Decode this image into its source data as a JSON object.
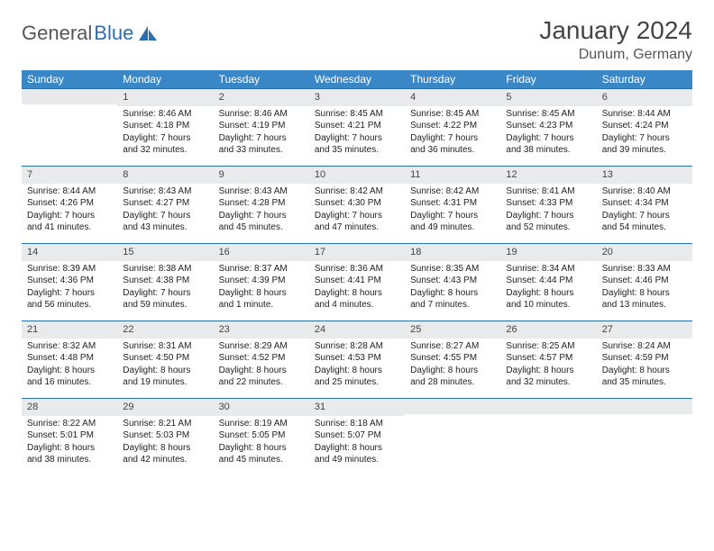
{
  "brand": {
    "part1": "General",
    "part2": "Blue"
  },
  "title": "January 2024",
  "location": "Dunum, Germany",
  "colors": {
    "header_bg": "#3a87c8",
    "header_text": "#ffffff",
    "daynum_bg": "#e9eaeb",
    "daynum_border": "#2b6fb0",
    "text": "#222222",
    "title_text": "#444444"
  },
  "weekdays": [
    "Sunday",
    "Monday",
    "Tuesday",
    "Wednesday",
    "Thursday",
    "Friday",
    "Saturday"
  ],
  "weeks": [
    [
      {
        "n": "",
        "sr": "",
        "ss": "",
        "dl": ""
      },
      {
        "n": "1",
        "sr": "Sunrise: 8:46 AM",
        "ss": "Sunset: 4:18 PM",
        "dl": "Daylight: 7 hours and 32 minutes."
      },
      {
        "n": "2",
        "sr": "Sunrise: 8:46 AM",
        "ss": "Sunset: 4:19 PM",
        "dl": "Daylight: 7 hours and 33 minutes."
      },
      {
        "n": "3",
        "sr": "Sunrise: 8:45 AM",
        "ss": "Sunset: 4:21 PM",
        "dl": "Daylight: 7 hours and 35 minutes."
      },
      {
        "n": "4",
        "sr": "Sunrise: 8:45 AM",
        "ss": "Sunset: 4:22 PM",
        "dl": "Daylight: 7 hours and 36 minutes."
      },
      {
        "n": "5",
        "sr": "Sunrise: 8:45 AM",
        "ss": "Sunset: 4:23 PM",
        "dl": "Daylight: 7 hours and 38 minutes."
      },
      {
        "n": "6",
        "sr": "Sunrise: 8:44 AM",
        "ss": "Sunset: 4:24 PM",
        "dl": "Daylight: 7 hours and 39 minutes."
      }
    ],
    [
      {
        "n": "7",
        "sr": "Sunrise: 8:44 AM",
        "ss": "Sunset: 4:26 PM",
        "dl": "Daylight: 7 hours and 41 minutes."
      },
      {
        "n": "8",
        "sr": "Sunrise: 8:43 AM",
        "ss": "Sunset: 4:27 PM",
        "dl": "Daylight: 7 hours and 43 minutes."
      },
      {
        "n": "9",
        "sr": "Sunrise: 8:43 AM",
        "ss": "Sunset: 4:28 PM",
        "dl": "Daylight: 7 hours and 45 minutes."
      },
      {
        "n": "10",
        "sr": "Sunrise: 8:42 AM",
        "ss": "Sunset: 4:30 PM",
        "dl": "Daylight: 7 hours and 47 minutes."
      },
      {
        "n": "11",
        "sr": "Sunrise: 8:42 AM",
        "ss": "Sunset: 4:31 PM",
        "dl": "Daylight: 7 hours and 49 minutes."
      },
      {
        "n": "12",
        "sr": "Sunrise: 8:41 AM",
        "ss": "Sunset: 4:33 PM",
        "dl": "Daylight: 7 hours and 52 minutes."
      },
      {
        "n": "13",
        "sr": "Sunrise: 8:40 AM",
        "ss": "Sunset: 4:34 PM",
        "dl": "Daylight: 7 hours and 54 minutes."
      }
    ],
    [
      {
        "n": "14",
        "sr": "Sunrise: 8:39 AM",
        "ss": "Sunset: 4:36 PM",
        "dl": "Daylight: 7 hours and 56 minutes."
      },
      {
        "n": "15",
        "sr": "Sunrise: 8:38 AM",
        "ss": "Sunset: 4:38 PM",
        "dl": "Daylight: 7 hours and 59 minutes."
      },
      {
        "n": "16",
        "sr": "Sunrise: 8:37 AM",
        "ss": "Sunset: 4:39 PM",
        "dl": "Daylight: 8 hours and 1 minute."
      },
      {
        "n": "17",
        "sr": "Sunrise: 8:36 AM",
        "ss": "Sunset: 4:41 PM",
        "dl": "Daylight: 8 hours and 4 minutes."
      },
      {
        "n": "18",
        "sr": "Sunrise: 8:35 AM",
        "ss": "Sunset: 4:43 PM",
        "dl": "Daylight: 8 hours and 7 minutes."
      },
      {
        "n": "19",
        "sr": "Sunrise: 8:34 AM",
        "ss": "Sunset: 4:44 PM",
        "dl": "Daylight: 8 hours and 10 minutes."
      },
      {
        "n": "20",
        "sr": "Sunrise: 8:33 AM",
        "ss": "Sunset: 4:46 PM",
        "dl": "Daylight: 8 hours and 13 minutes."
      }
    ],
    [
      {
        "n": "21",
        "sr": "Sunrise: 8:32 AM",
        "ss": "Sunset: 4:48 PM",
        "dl": "Daylight: 8 hours and 16 minutes."
      },
      {
        "n": "22",
        "sr": "Sunrise: 8:31 AM",
        "ss": "Sunset: 4:50 PM",
        "dl": "Daylight: 8 hours and 19 minutes."
      },
      {
        "n": "23",
        "sr": "Sunrise: 8:29 AM",
        "ss": "Sunset: 4:52 PM",
        "dl": "Daylight: 8 hours and 22 minutes."
      },
      {
        "n": "24",
        "sr": "Sunrise: 8:28 AM",
        "ss": "Sunset: 4:53 PM",
        "dl": "Daylight: 8 hours and 25 minutes."
      },
      {
        "n": "25",
        "sr": "Sunrise: 8:27 AM",
        "ss": "Sunset: 4:55 PM",
        "dl": "Daylight: 8 hours and 28 minutes."
      },
      {
        "n": "26",
        "sr": "Sunrise: 8:25 AM",
        "ss": "Sunset: 4:57 PM",
        "dl": "Daylight: 8 hours and 32 minutes."
      },
      {
        "n": "27",
        "sr": "Sunrise: 8:24 AM",
        "ss": "Sunset: 4:59 PM",
        "dl": "Daylight: 8 hours and 35 minutes."
      }
    ],
    [
      {
        "n": "28",
        "sr": "Sunrise: 8:22 AM",
        "ss": "Sunset: 5:01 PM",
        "dl": "Daylight: 8 hours and 38 minutes."
      },
      {
        "n": "29",
        "sr": "Sunrise: 8:21 AM",
        "ss": "Sunset: 5:03 PM",
        "dl": "Daylight: 8 hours and 42 minutes."
      },
      {
        "n": "30",
        "sr": "Sunrise: 8:19 AM",
        "ss": "Sunset: 5:05 PM",
        "dl": "Daylight: 8 hours and 45 minutes."
      },
      {
        "n": "31",
        "sr": "Sunrise: 8:18 AM",
        "ss": "Sunset: 5:07 PM",
        "dl": "Daylight: 8 hours and 49 minutes."
      },
      {
        "n": "",
        "sr": "",
        "ss": "",
        "dl": ""
      },
      {
        "n": "",
        "sr": "",
        "ss": "",
        "dl": ""
      },
      {
        "n": "",
        "sr": "",
        "ss": "",
        "dl": ""
      }
    ]
  ]
}
